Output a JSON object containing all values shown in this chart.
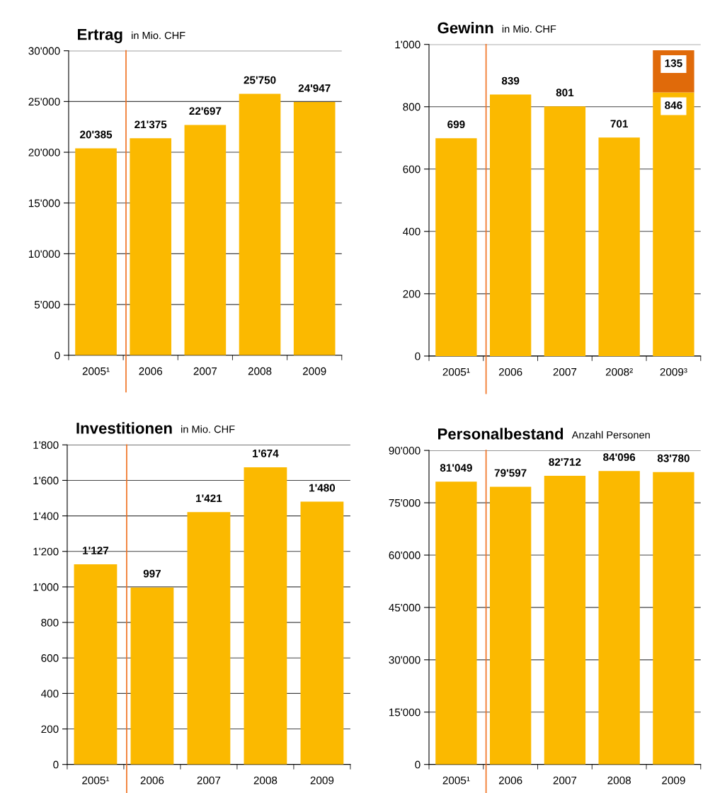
{
  "chart_data": [
    {
      "type": "bar",
      "title": "Ertrag",
      "subtitle": "in Mio. CHF",
      "categories": [
        "2005¹",
        "2006",
        "2007",
        "2008",
        "2009"
      ],
      "series": [
        {
          "color": "#fbb900",
          "values": [
            20385,
            21375,
            22697,
            25750,
            24947
          ],
          "value_labels": [
            "20'385",
            "21'375",
            "22'697",
            "25'750",
            "24'947"
          ]
        }
      ],
      "ylim": [
        0,
        30000
      ],
      "yticks": [
        0,
        {
          "value": 5000,
          "label": "5'000"
        },
        {
          "value": 10000,
          "label": "10'000"
        },
        {
          "value": 15000,
          "label": "15'000"
        },
        {
          "value": 20000,
          "label": "20'000"
        },
        {
          "value": 25000,
          "label": "25'000"
        },
        {
          "value": 30000,
          "label": "30'000"
        }
      ],
      "grid": "y",
      "ref_lines": [
        {
          "axis": "x",
          "value": "2006",
          "color": "#f07020"
        }
      ]
    },
    {
      "type": "bar",
      "title": "Gewinn",
      "subtitle": "in Mio. CHF",
      "categories": [
        "2005¹",
        "2006",
        "2007",
        "2008²",
        "2009³"
      ],
      "stacked": true,
      "series": [
        {
          "color": "#fbb900",
          "values": [
            699,
            839,
            801,
            701,
            846
          ],
          "value_labels": [
            "699",
            "839",
            "801",
            "701",
            "846"
          ]
        },
        {
          "color": "#e06a0a",
          "values": [
            null,
            null,
            null,
            null,
            135
          ],
          "value_labels": [
            null,
            null,
            null,
            null,
            "135"
          ]
        }
      ],
      "ylim": [
        0,
        1000
      ],
      "yticks": [
        0,
        200,
        400,
        600,
        800,
        {
          "value": 1000,
          "label": "1'000"
        }
      ],
      "grid": "y",
      "ref_lines": [
        {
          "axis": "x",
          "value": "2006",
          "color": "#f07020"
        }
      ]
    },
    {
      "type": "bar",
      "title": "Investitionen",
      "subtitle": "in Mio. CHF",
      "categories": [
        "2005¹",
        "2006",
        "2007",
        "2008",
        "2009"
      ],
      "series": [
        {
          "color": "#fbb900",
          "values": [
            1127,
            997,
            1421,
            1674,
            1480
          ],
          "value_labels": [
            "1'127",
            "997",
            "1'421",
            "1'674",
            "1'480"
          ]
        }
      ],
      "ylim": [
        0,
        1800
      ],
      "yticks": [
        0,
        200,
        400,
        600,
        800,
        {
          "value": 1000,
          "label": "1'000"
        },
        {
          "value": 1200,
          "label": "1'200"
        },
        {
          "value": 1400,
          "label": "1'400"
        },
        {
          "value": 1600,
          "label": "1'600"
        },
        {
          "value": 1800,
          "label": "1'800"
        }
      ],
      "grid": "y",
      "ref_lines": [
        {
          "axis": "x",
          "value": "2006",
          "color": "#f07020"
        }
      ]
    },
    {
      "type": "bar",
      "title": "Personalbestand",
      "subtitle": "Anzahl Personen",
      "categories": [
        "2005¹",
        "2006",
        "2007",
        "2008",
        "2009"
      ],
      "series": [
        {
          "color": "#fbb900",
          "values": [
            81049,
            79597,
            82712,
            84096,
            83780
          ],
          "value_labels": [
            "81'049",
            "79'597",
            "82'712",
            "84'096",
            "83'780"
          ]
        }
      ],
      "ylim": [
        0,
        90000
      ],
      "yticks": [
        0,
        {
          "value": 15000,
          "label": "15'000"
        },
        {
          "value": 30000,
          "label": "30'000"
        },
        {
          "value": 45000,
          "label": "45'000"
        },
        {
          "value": 60000,
          "label": "60'000"
        },
        {
          "value": 75000,
          "label": "75'000"
        },
        {
          "value": 90000,
          "label": "90'000"
        }
      ],
      "grid": "y",
      "ref_lines": [
        {
          "axis": "x",
          "value": "2006",
          "color": "#f07020"
        }
      ]
    }
  ]
}
